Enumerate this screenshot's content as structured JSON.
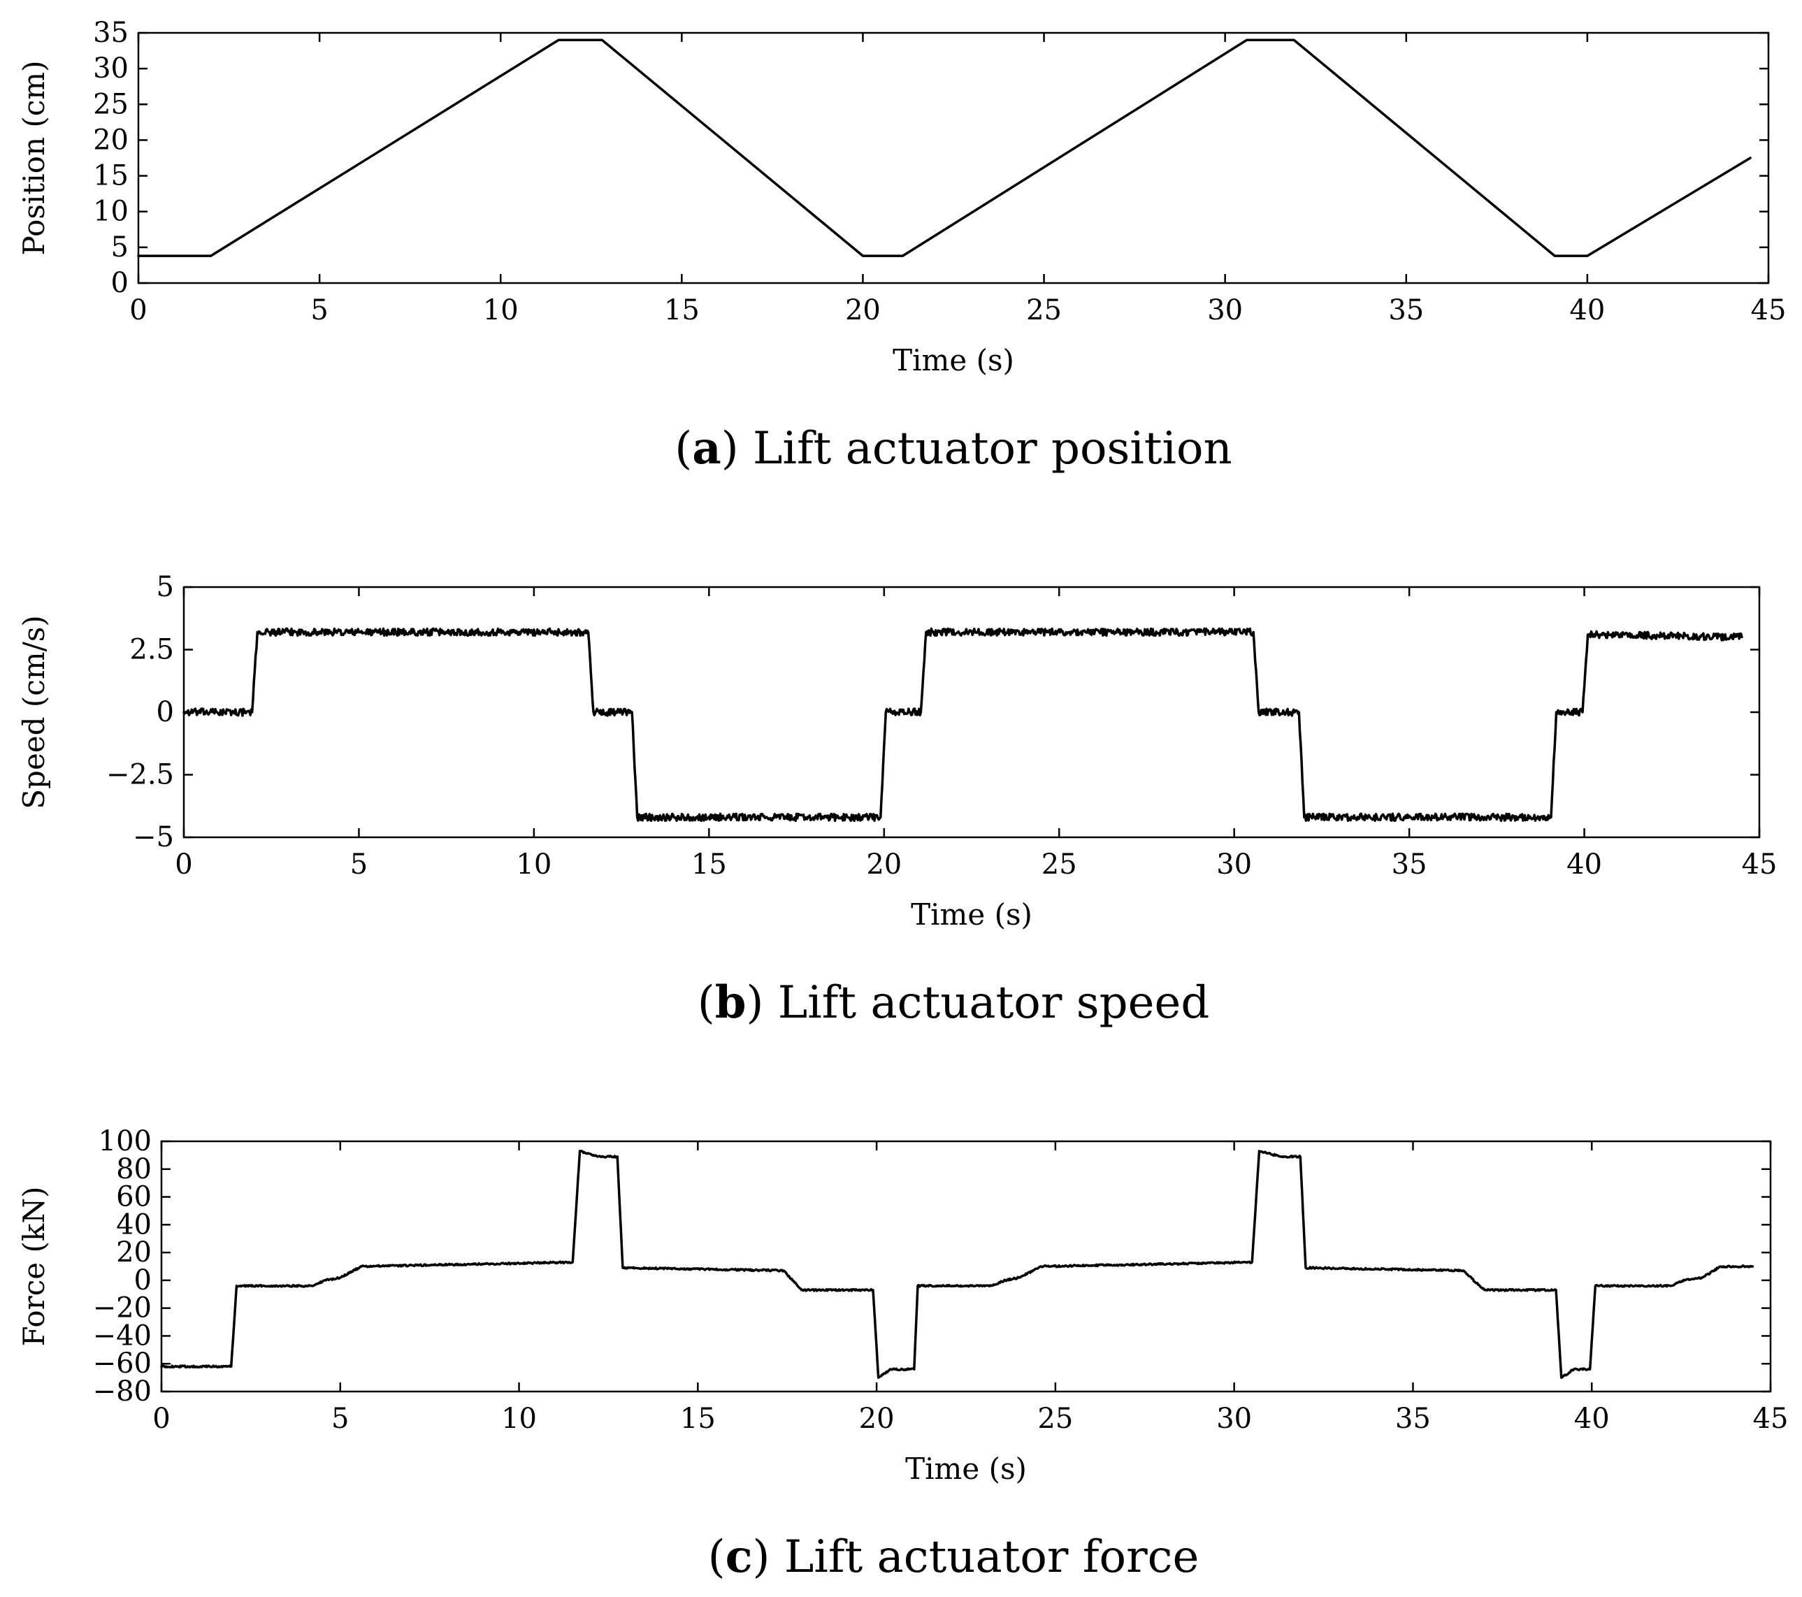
{
  "chart_data": [
    {
      "type": "line",
      "id": "position",
      "caption_letter": "a",
      "caption_text": "Lift actuator position",
      "xlabel": "Time (s)",
      "ylabel": "Position (cm)",
      "xlim": [
        0,
        45
      ],
      "ylim": [
        0,
        35
      ],
      "xticks": [
        0,
        5,
        10,
        15,
        20,
        25,
        30,
        35,
        40,
        45
      ],
      "yticks": [
        0,
        5,
        10,
        15,
        20,
        25,
        30,
        35
      ],
      "xtick_labels": [
        "0",
        "5",
        "10",
        "15",
        "20",
        "25",
        "30",
        "35",
        "40",
        "45"
      ],
      "ytick_labels": [
        "0",
        "5",
        "10",
        "15",
        "20",
        "25",
        "30",
        "35"
      ],
      "noise": 0,
      "series": [
        {
          "name": "position",
          "color": "#000000",
          "x": [
            0,
            2,
            11.6,
            12.8,
            20,
            21.1,
            30.6,
            31.9,
            39.1,
            40,
            44.5
          ],
          "y": [
            3.8,
            3.8,
            34,
            34,
            3.8,
            3.8,
            34,
            34,
            3.8,
            3.8,
            17.5
          ]
        }
      ]
    },
    {
      "type": "line",
      "id": "speed",
      "caption_letter": "b",
      "caption_text": "Lift actuator speed",
      "xlabel": "Time (s)",
      "ylabel": "Speed (cm/s)",
      "xlim": [
        0,
        45
      ],
      "ylim": [
        -5,
        5
      ],
      "xticks": [
        0,
        5,
        10,
        15,
        20,
        25,
        30,
        35,
        40,
        45
      ],
      "yticks": [
        -5,
        -2.5,
        0,
        2.5,
        5
      ],
      "xtick_labels": [
        "0",
        "5",
        "10",
        "15",
        "20",
        "25",
        "30",
        "35",
        "40",
        "45"
      ],
      "ytick_labels": [
        "−5",
        "−2.5",
        "0",
        "2.5",
        "5"
      ],
      "noise": 0.14,
      "series": [
        {
          "name": "speed",
          "color": "#000000",
          "x": [
            0,
            1.95,
            2.1,
            11.55,
            11.7,
            12.8,
            12.95,
            19.9,
            20.05,
            21.05,
            21.2,
            30.55,
            30.7,
            31.85,
            32.0,
            39.05,
            39.2,
            39.95,
            40.1,
            44.5
          ],
          "y": [
            0,
            0,
            3.2,
            3.2,
            0,
            0,
            -4.2,
            -4.2,
            0,
            0,
            3.2,
            3.2,
            0,
            0,
            -4.2,
            -4.2,
            0,
            0,
            3.1,
            3.0
          ]
        }
      ]
    },
    {
      "type": "line",
      "id": "force",
      "caption_letter": "c",
      "caption_text": "Lift actuator force",
      "xlabel": "Time (s)",
      "ylabel": "Force (kN)",
      "xlim": [
        0,
        45
      ],
      "ylim": [
        -80,
        100
      ],
      "xticks": [
        0,
        5,
        10,
        15,
        20,
        25,
        30,
        35,
        40,
        45
      ],
      "yticks": [
        -80,
        -60,
        -40,
        -20,
        0,
        20,
        40,
        60,
        80,
        100
      ],
      "xtick_labels": [
        "0",
        "5",
        "10",
        "15",
        "20",
        "25",
        "30",
        "35",
        "40",
        "45"
      ],
      "ytick_labels": [
        "−80",
        "−60",
        "−40",
        "−20",
        "0",
        "20",
        "40",
        "60",
        "80",
        "100"
      ],
      "noise": 0.6,
      "series": [
        {
          "name": "force",
          "color": "#000000",
          "x": [
            0,
            1.95,
            2.1,
            4.2,
            4.6,
            5.0,
            5.6,
            11.5,
            11.7,
            12.2,
            12.75,
            12.9,
            17.4,
            17.9,
            19.9,
            20.05,
            20.4,
            21.05,
            21.15,
            23.2,
            23.6,
            24.0,
            24.6,
            30.5,
            30.7,
            31.3,
            31.85,
            32.0,
            36.4,
            37.0,
            39.0,
            39.15,
            39.5,
            39.95,
            40.1,
            42.2,
            42.6,
            43.1,
            43.6,
            44.5
          ],
          "y": [
            -62,
            -62,
            -4,
            -4,
            0,
            2,
            10,
            13,
            93,
            89,
            89,
            9,
            7,
            -7,
            -7,
            -70,
            -64,
            -64,
            -4,
            -4,
            0,
            2,
            10,
            13,
            93,
            89,
            89,
            9,
            7,
            -7,
            -7,
            -70,
            -64,
            -64,
            -4,
            -4,
            0,
            2,
            10,
            10
          ]
        }
      ]
    }
  ]
}
